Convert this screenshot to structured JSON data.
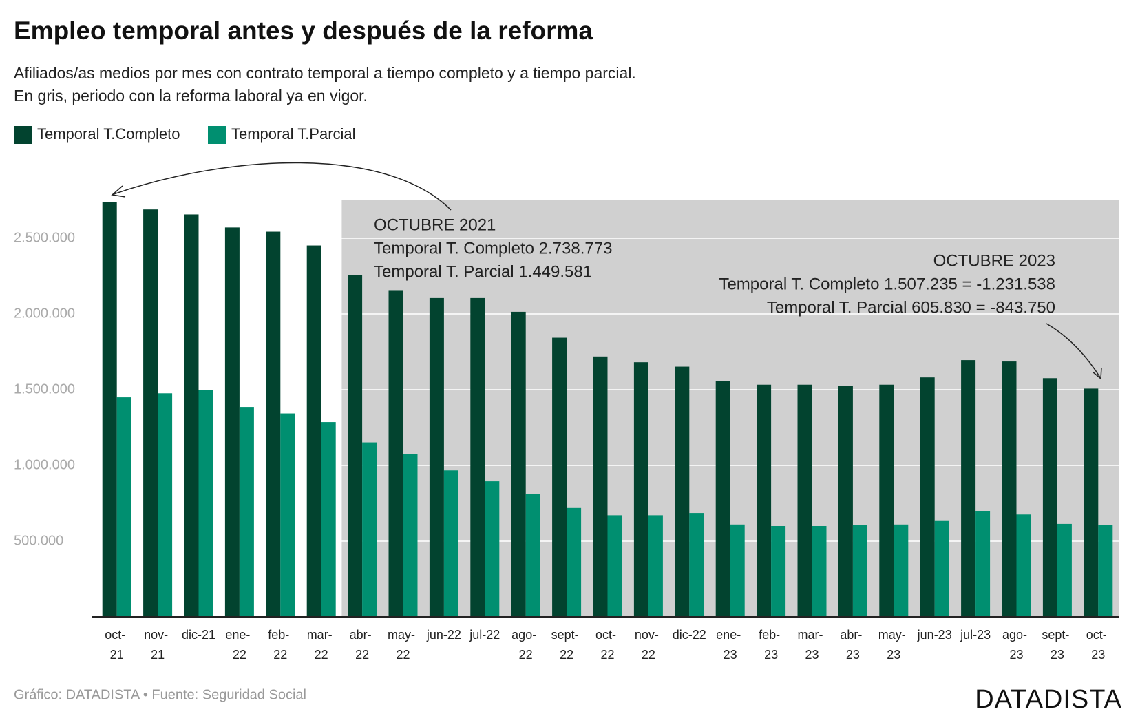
{
  "chart_data": {
    "type": "bar",
    "title": "Empleo temporal antes y después de la reforma",
    "subtitle": [
      "Afiliados/as medios por mes con contrato temporal a tiempo completo y a tiempo parcial.",
      "En gris, periodo con la reforma laboral ya en vigor."
    ],
    "categories": [
      "oct-\n21",
      "nov-\n21",
      "dic-21",
      "ene-\n22",
      "feb-\n22",
      "mar-\n22",
      "abr-\n22",
      "may-\n22",
      "jun-22",
      "jul-22",
      "ago-\n22",
      "sept-\n22",
      "oct-\n22",
      "nov-\n22",
      "dic-22",
      "ene-\n23",
      "feb-\n23",
      "mar-\n23",
      "abr-\n23",
      "may-\n23",
      "jun-23",
      "jul-23",
      "ago-\n23",
      "sept-\n23",
      "oct-\n23"
    ],
    "series": [
      {
        "name": "Temporal T.Completo",
        "color": "#02432f",
        "values": [
          2738773,
          2690000,
          2657000,
          2571000,
          2543000,
          2452000,
          2257000,
          2157000,
          2105000,
          2105000,
          2014000,
          1843000,
          1719000,
          1681000,
          1652000,
          1557000,
          1533000,
          1533000,
          1524000,
          1533000,
          1581000,
          1695000,
          1686000,
          1576000,
          1507235
        ]
      },
      {
        "name": "Temporal T.Parcial",
        "color": "#008f70",
        "values": [
          1449581,
          1476000,
          1500000,
          1386000,
          1343000,
          1286000,
          1152000,
          1076000,
          967000,
          895000,
          810000,
          719000,
          671000,
          671000,
          686000,
          610000,
          600000,
          600000,
          605000,
          610000,
          633000,
          700000,
          676000,
          614000,
          605830
        ]
      }
    ],
    "ylim": [
      0,
      2750000
    ],
    "yticks": [
      {
        "value": 500000,
        "label": "500.000"
      },
      {
        "value": 1000000,
        "label": "1.000.000"
      },
      {
        "value": 1500000,
        "label": "1.500.000"
      },
      {
        "value": 2000000,
        "label": "2.000.000"
      },
      {
        "value": 2500000,
        "label": "2.500.000"
      }
    ],
    "grid": true,
    "highlight": {
      "from": "abr-\n22",
      "color": "#d0d0d0"
    },
    "annotations": [
      [
        "OCTUBRE 2021",
        "Temporal T. Completo 2.738.773",
        "Temporal T. Parcial 1.449.581"
      ],
      [
        "OCTUBRE 2023",
        "Temporal T. Completo 1.507.235  =  -1.231.538",
        "Temporal T. Parcial 605.830  =  -843.750"
      ]
    ],
    "source": "Gráfico: DATADISTA • Fuente: Seguridad Social",
    "brand": "DATADISTA"
  }
}
